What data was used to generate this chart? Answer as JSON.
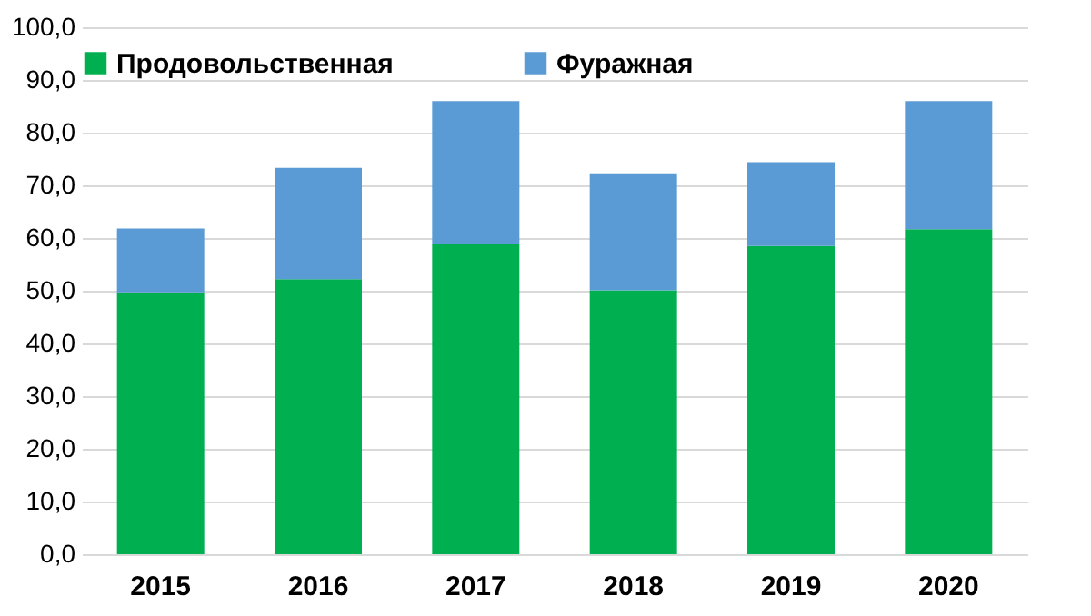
{
  "chart_data": {
    "type": "bar",
    "stacked": true,
    "categories": [
      "2015",
      "2016",
      "2017",
      "2018",
      "2019",
      "2020"
    ],
    "series": [
      {
        "name": "Продовольственная",
        "color": "#00b050",
        "values": [
          49.7,
          52.2,
          58.8,
          50.1,
          58.5,
          61.7
        ]
      },
      {
        "name": "Фуражная",
        "color": "#5b9bd5",
        "values": [
          12.1,
          21.1,
          27.2,
          22.2,
          15.9,
          24.3
        ]
      }
    ],
    "ylim": [
      0,
      100
    ],
    "yticks": [
      {
        "value": 0,
        "label": "0,0"
      },
      {
        "value": 10,
        "label": "10,0"
      },
      {
        "value": 20,
        "label": "20,0"
      },
      {
        "value": 30,
        "label": "30,0"
      },
      {
        "value": 40,
        "label": "40,0"
      },
      {
        "value": 50,
        "label": "50,0"
      },
      {
        "value": 60,
        "label": "60,0"
      },
      {
        "value": 70,
        "label": "70,0"
      },
      {
        "value": 80,
        "label": "80,0"
      },
      {
        "value": 90,
        "label": "90,0"
      },
      {
        "value": 100,
        "label": "100,0"
      }
    ],
    "grid": "y",
    "legend": "top"
  }
}
